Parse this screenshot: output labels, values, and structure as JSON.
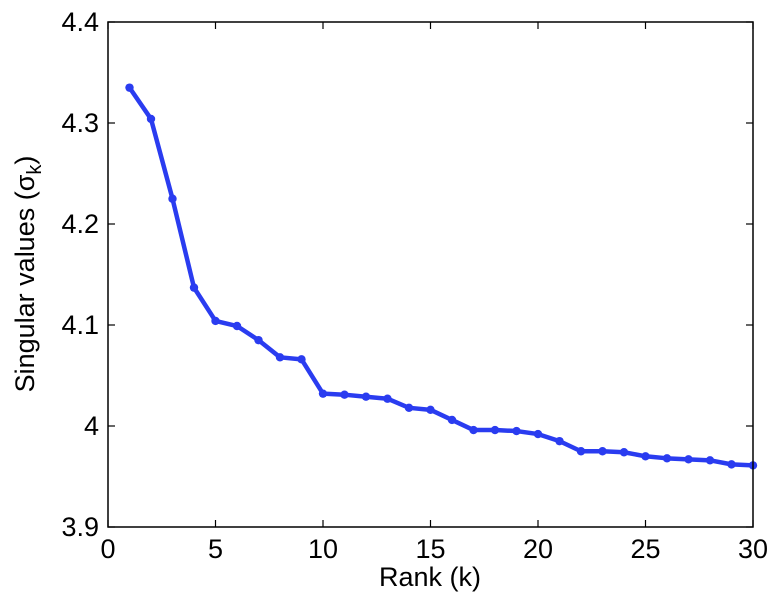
{
  "chart_data": {
    "type": "line",
    "title": "",
    "xlabel": "Rank (k)",
    "ylabel": "Singular values (σ",
    "ylabel_subscript": "k",
    "ylabel_suffix": ")",
    "xlim": [
      0,
      30
    ],
    "ylim": [
      3.9,
      4.4
    ],
    "xticks": [
      0,
      5,
      10,
      15,
      20,
      25,
      30
    ],
    "yticks": [
      3.9,
      4.0,
      4.1,
      4.2,
      4.3,
      4.4
    ],
    "xtick_labels": [
      "0",
      "5",
      "10",
      "15",
      "20",
      "25",
      "30"
    ],
    "ytick_labels": [
      "3.9",
      "4",
      "4.1",
      "4.2",
      "4.3",
      "4.4"
    ],
    "grid": false,
    "series": [
      {
        "color": "#2a3cf0",
        "marker": "dot",
        "x": [
          1,
          2,
          3,
          4,
          5,
          6,
          7,
          8,
          9,
          10,
          11,
          12,
          13,
          14,
          15,
          16,
          17,
          18,
          19,
          20,
          21,
          22,
          23,
          24,
          25,
          26,
          27,
          28,
          29,
          30
        ],
        "values": [
          4.335,
          4.304,
          4.225,
          4.137,
          4.104,
          4.099,
          4.085,
          4.068,
          4.066,
          4.032,
          4.031,
          4.029,
          4.027,
          4.018,
          4.016,
          4.006,
          3.996,
          3.996,
          3.995,
          3.992,
          3.985,
          3.975,
          3.975,
          3.974,
          3.97,
          3.968,
          3.967,
          3.966,
          3.962,
          3.961
        ]
      }
    ]
  }
}
